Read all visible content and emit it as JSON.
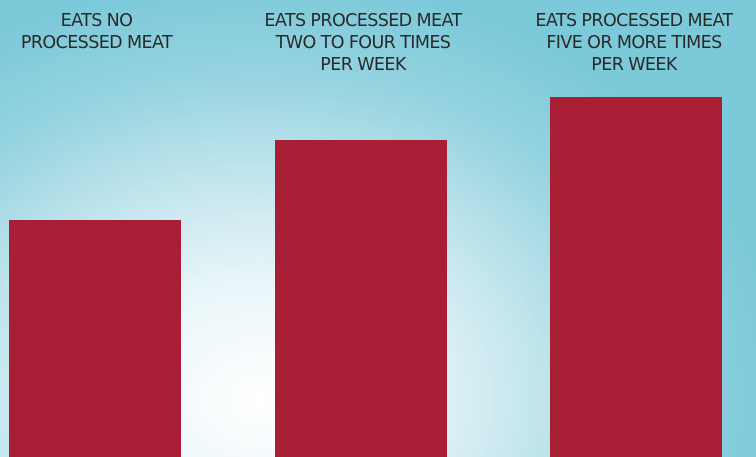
{
  "chart_data": {
    "type": "bar",
    "title": "",
    "xlabel": "",
    "ylabel": "",
    "categories": [
      "EATS NO\nPROCESSED MEAT",
      "EATS PROCESSED MEAT\nTWO TO FOUR TIMES\nPER WEEK",
      "EATS PROCESSED MEAT\nFIVE OR MORE TIMES\nPER WEEK"
    ],
    "values": [
      237,
      317,
      360
    ],
    "ylim": [
      0,
      360
    ],
    "grid": false,
    "legend": "none",
    "bar_color": "#A81E35"
  }
}
